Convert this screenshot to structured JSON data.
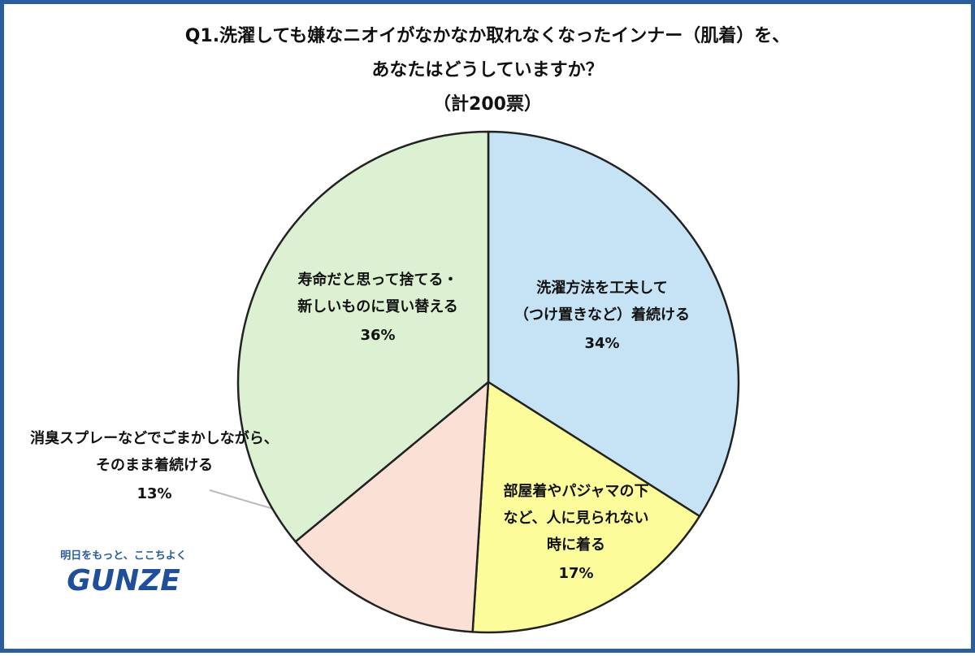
{
  "chart_data": {
    "type": "pie",
    "title": [
      "Q1.洗濯しても嫌なニオイがなかなか取れなくなったインナー（肌着）を、",
      "あなたはどうしていますか？"
    ],
    "subtitle": "（計200票）",
    "categories": [
      [
        "洗濯方法を工夫して",
        "（つけ置きなど）着続ける"
      ],
      [
        "部屋着やパジャマの下",
        "など、人に見られない",
        "時に着る"
      ],
      [
        "消臭スプレーなどでごまかしながら、",
        "そのまま着続ける"
      ],
      [
        "寿命だと思って捨てる・",
        "新しいものに買い替える"
      ]
    ],
    "values": [
      34,
      17,
      13,
      36
    ],
    "value_labels": [
      "34%",
      "17%",
      "13%",
      "36%"
    ],
    "colors": [
      "#c5e3f4",
      "#fcfc9b",
      "#fae0d5",
      "#dbf1d2"
    ]
  },
  "logo": {
    "tagline": "明日をもっと、ここちよく",
    "brand": "GUNZE"
  }
}
